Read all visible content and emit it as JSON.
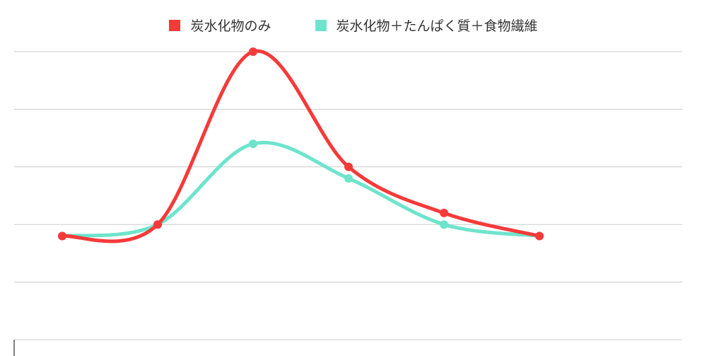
{
  "chart_data": {
    "type": "line",
    "title": "",
    "xlabel": "",
    "ylabel": "",
    "categories": [
      "",
      "",
      "",
      "",
      "",
      ""
    ],
    "ylim": [
      0,
      5
    ],
    "grid": true,
    "legend_position": "top",
    "series": [
      {
        "name": "炭水化物のみ",
        "color": "#f53a3a",
        "values": [
          1.8,
          2.0,
          5.0,
          3.0,
          2.2,
          1.8
        ]
      },
      {
        "name": "炭水化物＋たんぱく質＋食物繊維",
        "color": "#6ee4cc",
        "values": [
          1.8,
          2.0,
          3.4,
          2.8,
          2.0,
          1.8
        ]
      }
    ]
  }
}
